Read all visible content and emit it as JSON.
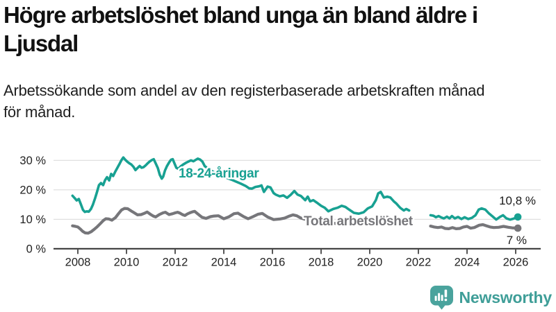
{
  "header": {
    "title_lines": [
      "Högre arbetslöshet bland unga än bland äldre i",
      "Ljusdal"
    ],
    "subtitle_lines": [
      "Arbetssökande som andel av den registerbaserade arbetskraften månad",
      "för månad."
    ]
  },
  "footer": {
    "brand": "Newsworthy",
    "logo_icon": "bar-chart-speech-bubble-icon"
  },
  "colors": {
    "youth": "#18A192",
    "total": "#76767A",
    "grid": "#DCDCDC",
    "axis": "#2E2E2E",
    "tick_text": "#222222",
    "value_text": "#1A1A1A",
    "brand": "#3F9E98",
    "logo_fill": "#4AA39D"
  },
  "chart_data": {
    "type": "line",
    "title": "Högre arbetslöshet bland unga än bland äldre i Ljusdal",
    "subtitle": "Arbetssökande som andel av den registerbaserade arbetskraften månad för månad.",
    "xlabel": "",
    "ylabel": "",
    "xlim": [
      2007.0,
      2027.0
    ],
    "ylim": [
      0,
      33
    ],
    "grid": "horizontal",
    "legend_position": "inline-labels",
    "y_suffix": " %",
    "y_ticks": [
      0,
      10,
      20,
      30
    ],
    "x_ticks": [
      2008,
      2010,
      2012,
      2014,
      2016,
      2018,
      2020,
      2022,
      2024,
      2026
    ],
    "series": [
      {
        "id": "youth",
        "name": "18-24-åringar",
        "color_key": "youth",
        "end_label": "10,8 %",
        "end_value": 10.8,
        "stroke_width": 3.6,
        "segments": [
          [
            [
              2007.78,
              18.0
            ],
            [
              2007.87,
              17.2
            ],
            [
              2007.95,
              16.4
            ],
            [
              2008.04,
              16.9
            ],
            [
              2008.12,
              15.2
            ],
            [
              2008.21,
              13.2
            ],
            [
              2008.29,
              12.5
            ],
            [
              2008.37,
              12.7
            ],
            [
              2008.45,
              12.6
            ],
            [
              2008.54,
              13.5
            ],
            [
              2008.62,
              15.0
            ],
            [
              2008.71,
              17.2
            ],
            [
              2008.79,
              19.3
            ],
            [
              2008.87,
              21.6
            ],
            [
              2008.95,
              22.3
            ],
            [
              2009.04,
              21.6
            ],
            [
              2009.12,
              23.3
            ],
            [
              2009.2,
              24.3
            ],
            [
              2009.29,
              23.2
            ],
            [
              2009.37,
              25.4
            ],
            [
              2009.45,
              24.7
            ],
            [
              2009.54,
              26.2
            ],
            [
              2009.62,
              27.4
            ],
            [
              2009.7,
              28.6
            ],
            [
              2009.79,
              30.0
            ],
            [
              2009.87,
              31.0
            ],
            [
              2009.95,
              30.2
            ],
            [
              2010.04,
              29.5
            ],
            [
              2010.12,
              29.0
            ],
            [
              2010.2,
              28.6
            ],
            [
              2010.29,
              27.8
            ],
            [
              2010.37,
              26.7
            ],
            [
              2010.45,
              27.4
            ],
            [
              2010.54,
              28.1
            ],
            [
              2010.62,
              27.5
            ],
            [
              2010.7,
              27.7
            ],
            [
              2010.79,
              28.3
            ],
            [
              2010.87,
              29.0
            ],
            [
              2010.95,
              29.6
            ],
            [
              2011.04,
              30.1
            ],
            [
              2011.12,
              30.4
            ],
            [
              2011.2,
              29.0
            ],
            [
              2011.29,
              27.4
            ],
            [
              2011.37,
              25.1
            ],
            [
              2011.45,
              23.8
            ],
            [
              2011.51,
              24.5
            ],
            [
              2011.58,
              26.5
            ],
            [
              2011.66,
              28.0
            ],
            [
              2011.75,
              29.3
            ],
            [
              2011.83,
              30.2
            ],
            [
              2011.9,
              30.4
            ],
            [
              2011.97,
              29.0
            ],
            [
              2012.05,
              27.5
            ],
            [
              2012.13,
              27.1
            ],
            [
              2012.22,
              27.9
            ],
            [
              2012.33,
              28.6
            ],
            [
              2012.45,
              29.2
            ],
            [
              2012.55,
              29.6
            ],
            [
              2012.65,
              30.0
            ],
            [
              2012.75,
              29.7
            ],
            [
              2012.85,
              30.2
            ],
            [
              2012.93,
              30.6
            ],
            [
              2013.02,
              30.3
            ],
            [
              2013.12,
              29.6
            ],
            [
              2013.22,
              28.0
            ],
            [
              2013.35,
              27.3
            ],
            [
              2013.5,
              26.4
            ],
            [
              2013.65,
              25.7
            ],
            [
              2013.8,
              25.1
            ],
            [
              2013.95,
              24.6
            ],
            [
              2014.12,
              24.1
            ],
            [
              2014.3,
              23.5
            ],
            [
              2014.5,
              22.8
            ],
            [
              2014.7,
              22.1
            ],
            [
              2014.9,
              21.3
            ],
            [
              2015.05,
              20.5
            ],
            [
              2015.15,
              20.4
            ],
            [
              2015.3,
              21.0
            ],
            [
              2015.45,
              21.2
            ],
            [
              2015.55,
              21.5
            ],
            [
              2015.65,
              19.3
            ],
            [
              2015.8,
              21.1
            ],
            [
              2015.92,
              20.8
            ],
            [
              2016.05,
              18.9
            ],
            [
              2016.13,
              18.4
            ],
            [
              2016.3,
              17.8
            ],
            [
              2016.45,
              18.1
            ],
            [
              2016.6,
              17.3
            ],
            [
              2016.75,
              18.3
            ],
            [
              2016.9,
              19.6
            ],
            [
              2017.03,
              18.4
            ],
            [
              2017.17,
              17.9
            ],
            [
              2017.35,
              16.5
            ],
            [
              2017.45,
              17.7
            ],
            [
              2017.55,
              16.1
            ],
            [
              2017.68,
              16.5
            ],
            [
              2017.82,
              15.7
            ],
            [
              2018.0,
              14.6
            ],
            [
              2018.15,
              13.9
            ],
            [
              2018.3,
              12.7
            ],
            [
              2018.5,
              13.5
            ],
            [
              2018.67,
              13.9
            ],
            [
              2018.85,
              14.6
            ],
            [
              2019.0,
              14.2
            ],
            [
              2019.15,
              13.3
            ],
            [
              2019.35,
              12.2
            ],
            [
              2019.55,
              11.9
            ],
            [
              2019.75,
              12.4
            ],
            [
              2019.92,
              13.7
            ],
            [
              2020.1,
              14.4
            ],
            [
              2020.25,
              16.5
            ],
            [
              2020.35,
              18.8
            ],
            [
              2020.45,
              19.3
            ],
            [
              2020.58,
              17.4
            ],
            [
              2020.72,
              17.7
            ],
            [
              2020.85,
              17.4
            ],
            [
              2021.0,
              16.0
            ],
            [
              2021.1,
              15.3
            ],
            [
              2021.25,
              13.9
            ],
            [
              2021.4,
              13.0
            ],
            [
              2021.5,
              13.5
            ],
            [
              2021.62,
              13.0
            ]
          ],
          [
            [
              2022.5,
              11.4
            ],
            [
              2022.62,
              11.2
            ],
            [
              2022.72,
              10.7
            ],
            [
              2022.83,
              11.1
            ],
            [
              2022.95,
              10.6
            ],
            [
              2023.05,
              10.3
            ],
            [
              2023.17,
              10.9
            ],
            [
              2023.28,
              10.3
            ],
            [
              2023.38,
              11.1
            ],
            [
              2023.5,
              10.3
            ],
            [
              2023.63,
              10.8
            ],
            [
              2023.77,
              10.1
            ],
            [
              2023.9,
              10.7
            ],
            [
              2024.05,
              10.1
            ],
            [
              2024.2,
              10.5
            ],
            [
              2024.35,
              11.4
            ],
            [
              2024.48,
              13.3
            ],
            [
              2024.6,
              13.7
            ],
            [
              2024.75,
              13.3
            ],
            [
              2024.9,
              12.0
            ],
            [
              2025.05,
              11.0
            ],
            [
              2025.2,
              9.9
            ],
            [
              2025.35,
              10.8
            ],
            [
              2025.48,
              11.4
            ],
            [
              2025.62,
              10.3
            ],
            [
              2025.77,
              9.9
            ],
            [
              2025.9,
              10.2
            ],
            [
              2026.09,
              10.8
            ]
          ]
        ]
      },
      {
        "id": "total",
        "name": "Total arbetslöshet",
        "color_key": "total",
        "end_label": "7 %",
        "end_value": 7,
        "stroke_width": 4.2,
        "segments": [
          [
            [
              2007.78,
              7.8
            ],
            [
              2007.9,
              7.6
            ],
            [
              2008.0,
              7.4
            ],
            [
              2008.1,
              6.7
            ],
            [
              2008.2,
              5.9
            ],
            [
              2008.3,
              5.4
            ],
            [
              2008.42,
              5.3
            ],
            [
              2008.55,
              5.8
            ],
            [
              2008.67,
              6.6
            ],
            [
              2008.8,
              7.5
            ],
            [
              2008.92,
              8.5
            ],
            [
              2009.05,
              9.6
            ],
            [
              2009.15,
              10.2
            ],
            [
              2009.28,
              10.1
            ],
            [
              2009.4,
              9.7
            ],
            [
              2009.55,
              10.6
            ],
            [
              2009.67,
              11.9
            ],
            [
              2009.8,
              13.2
            ],
            [
              2009.92,
              13.7
            ],
            [
              2010.05,
              13.6
            ],
            [
              2010.2,
              12.8
            ],
            [
              2010.3,
              12.3
            ],
            [
              2010.45,
              11.5
            ],
            [
              2010.6,
              11.6
            ],
            [
              2010.75,
              12.1
            ],
            [
              2010.85,
              12.5
            ],
            [
              2011.0,
              11.6
            ],
            [
              2011.1,
              11.1
            ],
            [
              2011.2,
              10.8
            ],
            [
              2011.35,
              11.6
            ],
            [
              2011.5,
              12.2
            ],
            [
              2011.6,
              12.4
            ],
            [
              2011.75,
              11.6
            ],
            [
              2011.9,
              11.9
            ],
            [
              2012.0,
              12.2
            ],
            [
              2012.1,
              12.4
            ],
            [
              2012.2,
              12.1
            ],
            [
              2012.3,
              11.6
            ],
            [
              2012.4,
              11.3
            ],
            [
              2012.5,
              11.8
            ],
            [
              2012.6,
              12.2
            ],
            [
              2012.7,
              12.5
            ],
            [
              2012.8,
              12.7
            ],
            [
              2012.95,
              11.7
            ],
            [
              2013.1,
              10.7
            ],
            [
              2013.27,
              10.3
            ],
            [
              2013.45,
              10.9
            ],
            [
              2013.6,
              11.1
            ],
            [
              2013.78,
              11.2
            ],
            [
              2014.0,
              10.2
            ],
            [
              2014.2,
              10.8
            ],
            [
              2014.42,
              11.9
            ],
            [
              2014.58,
              12.1
            ],
            [
              2014.8,
              11.0
            ],
            [
              2015.0,
              10.2
            ],
            [
              2015.2,
              10.9
            ],
            [
              2015.4,
              11.7
            ],
            [
              2015.58,
              12.0
            ],
            [
              2015.8,
              10.8
            ],
            [
              2016.05,
              9.9
            ],
            [
              2016.3,
              10.1
            ],
            [
              2016.5,
              10.4
            ],
            [
              2016.7,
              11.1
            ],
            [
              2016.85,
              11.5
            ],
            [
              2017.0,
              11.2
            ],
            [
              2017.15,
              10.5
            ],
            [
              2017.3,
              10.1
            ],
            [
              2017.5,
              9.8
            ],
            [
              2017.75,
              9.4
            ],
            [
              2018.0,
              9.1
            ],
            [
              2018.3,
              8.8
            ],
            [
              2018.6,
              8.6
            ],
            [
              2018.9,
              8.4
            ],
            [
              2019.2,
              8.3
            ],
            [
              2019.5,
              8.5
            ],
            [
              2019.8,
              8.8
            ],
            [
              2020.05,
              9.3
            ],
            [
              2020.3,
              10.7
            ],
            [
              2020.45,
              11.2
            ],
            [
              2020.6,
              11.0
            ],
            [
              2020.8,
              10.5
            ],
            [
              2021.0,
              10.0
            ],
            [
              2021.25,
              9.4
            ],
            [
              2021.45,
              9.0
            ],
            [
              2021.62,
              8.7
            ]
          ],
          [
            [
              2022.5,
              7.7
            ],
            [
              2022.65,
              7.4
            ],
            [
              2022.8,
              7.2
            ],
            [
              2022.95,
              7.4
            ],
            [
              2023.1,
              6.9
            ],
            [
              2023.25,
              6.8
            ],
            [
              2023.4,
              7.2
            ],
            [
              2023.55,
              6.8
            ],
            [
              2023.7,
              6.9
            ],
            [
              2023.85,
              7.4
            ],
            [
              2024.0,
              7.6
            ],
            [
              2024.15,
              7.0
            ],
            [
              2024.3,
              7.2
            ],
            [
              2024.5,
              8.0
            ],
            [
              2024.65,
              8.2
            ],
            [
              2024.8,
              7.8
            ],
            [
              2024.95,
              7.4
            ],
            [
              2025.1,
              7.2
            ],
            [
              2025.3,
              7.3
            ],
            [
              2025.5,
              7.6
            ],
            [
              2025.7,
              7.3
            ],
            [
              2025.85,
              7.1
            ],
            [
              2026.09,
              7.0
            ]
          ]
        ]
      }
    ]
  }
}
